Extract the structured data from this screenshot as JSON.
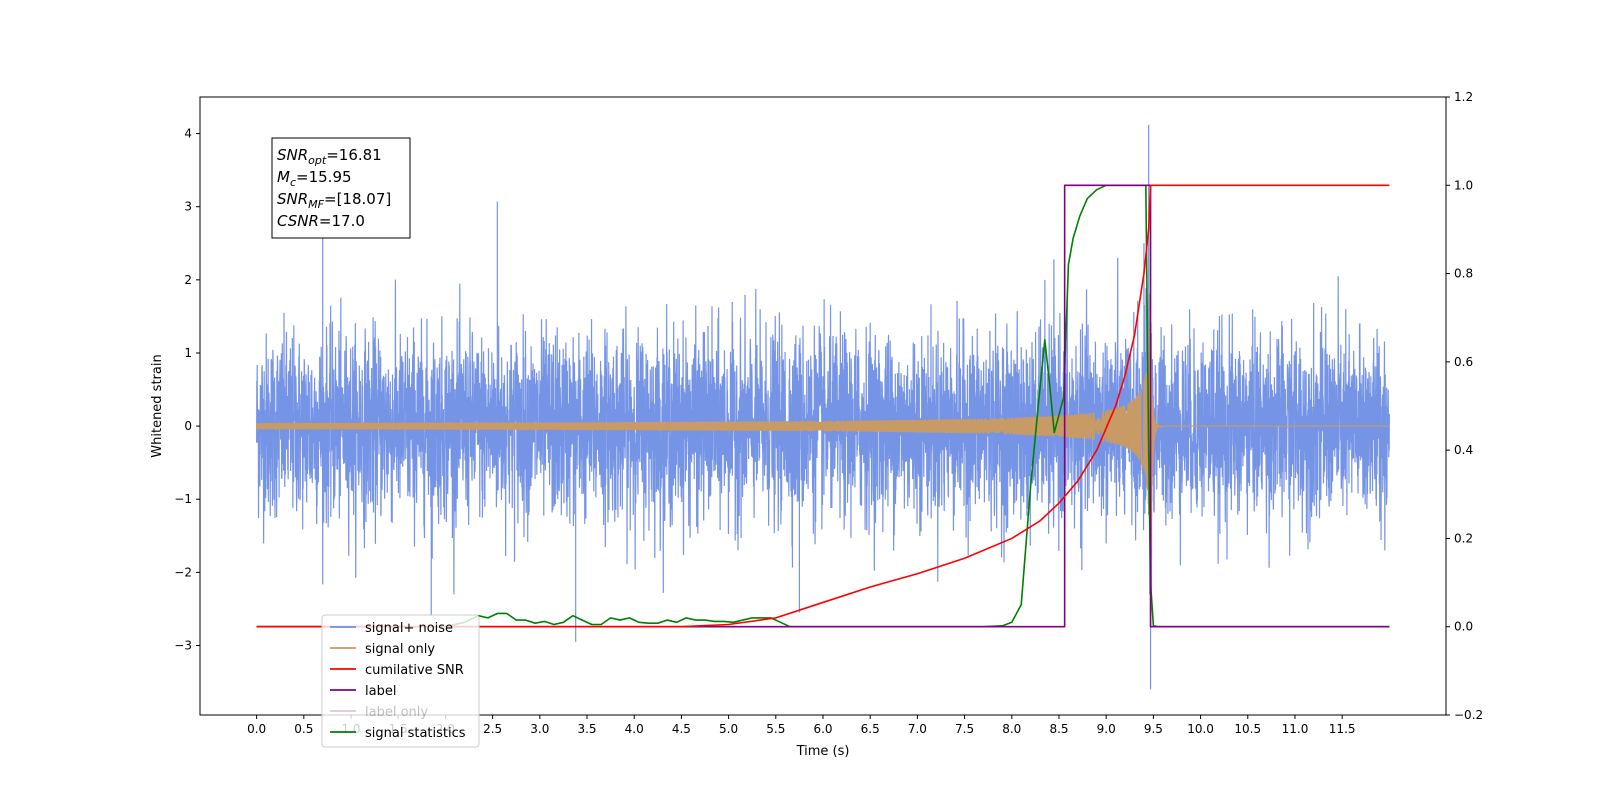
{
  "chart_data": {
    "type": "line",
    "title": "",
    "xlabel": "Time (s)",
    "ylabel": "Whitened strain",
    "xlim": [
      -0.6,
      12.6
    ],
    "ylim": [
      -3.95,
      4.5
    ],
    "y2lim": [
      -0.2,
      1.2
    ],
    "xticks": [
      0.0,
      0.5,
      1.0,
      1.5,
      2.0,
      2.5,
      3.0,
      3.5,
      4.0,
      4.5,
      5.0,
      5.5,
      6.0,
      6.5,
      7.0,
      7.5,
      8.0,
      8.5,
      9.0,
      9.5,
      10.0,
      10.5,
      11.0,
      11.5
    ],
    "xtick_labels": [
      "0.0",
      "0.5",
      "1.0",
      "1.5",
      "2.0",
      "2.5",
      "3.0",
      "3.5",
      "4.0",
      "4.5",
      "5.0",
      "5.5",
      "6.0",
      "6.5",
      "7.0",
      "7.5",
      "8.0",
      "8.5",
      "9.0",
      "9.5",
      "10.0",
      "10.5",
      "11.0",
      "11.5"
    ],
    "yticks": [
      -3,
      -2,
      -1,
      0,
      1,
      2,
      3,
      4
    ],
    "ytick_labels": [
      "−3",
      "−2",
      "−1",
      "0",
      "1",
      "2",
      "3",
      "4"
    ],
    "y2ticks": [
      -0.2,
      0.0,
      0.2,
      0.4,
      0.6,
      0.8,
      1.0,
      1.2
    ],
    "y2tick_labels": [
      "−0.2",
      "0.0",
      "0.2",
      "0.4",
      "0.6",
      "0.8",
      "1.0",
      "1.2"
    ],
    "grid": false,
    "legend_position": "bottom-left",
    "annotation": {
      "lines": [
        {
          "base": "SNR",
          "sub": "opt",
          "rest": "=16.81"
        },
        {
          "base": "M",
          "sub": "c",
          "rest": "=15.95"
        },
        {
          "base": "SNR",
          "sub": "MF",
          "rest": "=[18.07]"
        },
        {
          "base": "CSNR",
          "sub": "",
          "rest": "=17.0"
        }
      ]
    },
    "series": [
      {
        "name": "signal+ noise",
        "axis": "left",
        "color": "#6f8ee5",
        "kind": "noise",
        "x_range": [
          0.0,
          12.0
        ],
        "noise_band_typical": [
          -1.5,
          1.5
        ],
        "extremes": [
          [
            0.7,
            2.6
          ],
          [
            2.55,
            3.07
          ],
          [
            1.85,
            -2.6
          ],
          [
            3.38,
            -2.95
          ],
          [
            5.75,
            -2.55
          ],
          [
            8.35,
            2.0
          ],
          [
            9.4,
            2.5
          ],
          [
            9.45,
            4.12
          ],
          [
            9.47,
            -3.6
          ]
        ]
      },
      {
        "name": "signal only",
        "axis": "left",
        "color": "#c79a66",
        "kind": "chirp",
        "x_range": [
          0.0,
          12.0
        ],
        "merger_time": 9.47,
        "peak_amplitude": 2.4
      },
      {
        "name": "cumilative SNR",
        "axis": "right",
        "color": "#ff0000",
        "x": [
          0.0,
          4.5,
          5.0,
          5.5,
          6.0,
          6.5,
          7.0,
          7.5,
          8.0,
          8.3,
          8.5,
          8.7,
          8.9,
          9.1,
          9.2,
          9.3,
          9.4,
          9.45,
          9.47,
          9.5,
          10.0,
          11.0,
          11.5,
          12.0
        ],
        "values": [
          0.0,
          0.0,
          0.005,
          0.02,
          0.055,
          0.09,
          0.12,
          0.155,
          0.2,
          0.24,
          0.28,
          0.33,
          0.4,
          0.5,
          0.57,
          0.66,
          0.8,
          0.9,
          1.0,
          1.0,
          1.0,
          1.0,
          1.0,
          1.0
        ]
      },
      {
        "name": "label",
        "axis": "right",
        "color": "#800080",
        "x": [
          0.0,
          8.56,
          8.56,
          8.62,
          8.62,
          9.47,
          9.47,
          12.0
        ],
        "values": [
          0.0,
          0.0,
          1.0,
          1.0,
          1.0,
          1.0,
          0.0,
          0.0
        ]
      },
      {
        "name": "label only",
        "axis": "right",
        "color": "#d8c8d8",
        "x": [
          0.0,
          12.0
        ],
        "values": [
          0.0,
          0.0
        ]
      },
      {
        "name": "signal statistics",
        "axis": "right",
        "color": "#008000",
        "x": [
          0.0,
          2.0,
          2.2,
          2.35,
          2.45,
          2.55,
          2.65,
          2.75,
          2.85,
          2.95,
          3.05,
          3.15,
          3.25,
          3.35,
          3.45,
          3.55,
          3.65,
          3.75,
          3.85,
          3.95,
          4.05,
          4.15,
          4.25,
          4.35,
          4.45,
          4.55,
          4.65,
          4.75,
          4.85,
          4.95,
          5.05,
          5.15,
          5.25,
          5.35,
          5.45,
          5.55,
          5.65,
          7.7,
          7.9,
          8.0,
          8.1,
          8.2,
          8.28,
          8.35,
          8.4,
          8.45,
          8.5,
          8.55,
          8.6,
          8.65,
          8.72,
          8.8,
          8.9,
          9.0,
          9.42,
          9.45,
          9.47,
          9.5,
          9.55,
          12.0
        ],
        "values": [
          0.0,
          0.0,
          0.01,
          0.025,
          0.02,
          0.03,
          0.03,
          0.015,
          0.015,
          0.008,
          0.012,
          0.005,
          0.01,
          0.025,
          0.015,
          0.005,
          0.005,
          0.02,
          0.015,
          0.02,
          0.01,
          0.008,
          0.008,
          0.015,
          0.01,
          0.02,
          0.015,
          0.015,
          0.012,
          0.012,
          0.01,
          0.015,
          0.02,
          0.02,
          0.02,
          0.01,
          0.0,
          0.0,
          0.002,
          0.01,
          0.05,
          0.32,
          0.5,
          0.65,
          0.55,
          0.44,
          0.48,
          0.52,
          0.82,
          0.88,
          0.93,
          0.97,
          0.99,
          1.0,
          1.0,
          0.4,
          0.1,
          0.002,
          0.0,
          0.0
        ]
      }
    ]
  }
}
